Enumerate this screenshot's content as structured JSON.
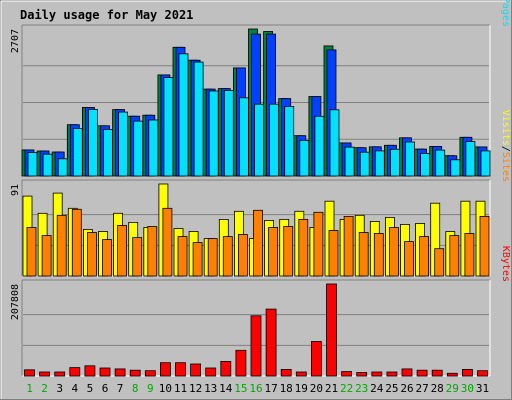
{
  "chart_data": {
    "type": "bar",
    "title": "Daily usage for May 2021",
    "days": [
      "1",
      "2",
      "3",
      "4",
      "5",
      "6",
      "7",
      "8",
      "9",
      "10",
      "11",
      "12",
      "13",
      "14",
      "15",
      "16",
      "17",
      "18",
      "19",
      "20",
      "21",
      "22",
      "23",
      "24",
      "25",
      "26",
      "27",
      "28",
      "29",
      "30",
      "31"
    ],
    "weekend_days": [
      "1",
      "2",
      "8",
      "9",
      "15",
      "16",
      "22",
      "23",
      "29",
      "30"
    ],
    "panels": [
      {
        "id": "top",
        "max_label": "2707",
        "ymax": 2707,
        "legend": [
          "Pages",
          "/",
          "Files",
          "/",
          "Hits"
        ],
        "legend_colors": [
          "#00e0ff",
          "#000000",
          "#0040ff",
          "#000000",
          "#008040"
        ],
        "series": [
          {
            "name": "Hits",
            "color": "#008040",
            "values": [
              481,
              461,
              442,
              945,
              1264,
              925,
              1222,
              1101,
              1120,
              1861,
              2370,
              2132,
              1600,
              1610,
              1991,
              2707,
              2661,
              1426,
              743,
              1464,
              2396,
              609,
              522,
              538,
              565,
              703,
              496,
              546,
              373,
              713,
              536
            ]
          },
          {
            "name": "Files",
            "color": "#0040ff",
            "values": [
              481,
              461,
              442,
              945,
              1264,
              925,
              1222,
              1101,
              1120,
              1861,
              2370,
              2132,
              1600,
              1610,
              1991,
              2613,
              2613,
              1426,
              743,
              1464,
              2322,
              609,
              522,
              538,
              565,
              703,
              496,
              546,
              373,
              713,
              536
            ]
          },
          {
            "name": "Pages",
            "color": "#00e0ff",
            "values": [
              433,
              402,
              316,
              876,
              1225,
              856,
              1176,
              1011,
              1031,
              1812,
              2250,
              2098,
              1566,
              1575,
              1440,
              1322,
              1322,
              1279,
              655,
              1099,
              1219,
              532,
              438,
              463,
              491,
              626,
              417,
              477,
              299,
              634,
              462
            ]
          }
        ]
      },
      {
        "id": "middle",
        "max_label": "91",
        "ymax": 91,
        "legend": [
          "Sites",
          "/",
          "Visits"
        ],
        "legend_colors": [
          "#ff8000",
          "#000000",
          "#ffff00"
        ],
        "series": [
          {
            "name": "Visits",
            "color": "#ffff00",
            "values": [
              79,
              62,
              82,
              67,
              46,
              44,
              62,
              53,
              48,
              91,
              47,
              44,
              37,
              56,
              64,
              37,
              55,
              56,
              64,
              48,
              74,
              56,
              60,
              54,
              58,
              51,
              52,
              72,
              44,
              74,
              74
            ]
          },
          {
            "name": "Sites",
            "color": "#ff8000",
            "values": [
              48,
              40,
              60,
              66,
              43,
              36,
              50,
              38,
              49,
              67,
              39,
              33,
              37,
              39,
              41,
              65,
              48,
              49,
              56,
              63,
              45,
              59,
              43,
              42,
              48,
              34,
              39,
              27,
              40,
              42,
              59
            ]
          }
        ]
      },
      {
        "id": "bottom",
        "max_label": "207808",
        "ymax": 207808,
        "legend": [
          "KBytes"
        ],
        "legend_colors": [
          "#ff0000"
        ],
        "series": [
          {
            "name": "KBytes",
            "color": "#ff0000",
            "values": [
              14000,
              9000,
              9000,
              19000,
              23000,
              18000,
              16000,
              13000,
              12000,
              30000,
              30000,
              27000,
              18000,
              33000,
              58000,
              136000,
              151000,
              15000,
              9000,
              78000,
              207808,
              10000,
              8000,
              9000,
              9000,
              16000,
              13000,
              13000,
              6000,
              15000,
              12000
            ]
          }
        ]
      }
    ],
    "colors": {
      "title": "#0000ff",
      "axis_label": "#000000",
      "day_label_weekday": "#000000",
      "day_label_weekend": "#00aa00",
      "plot_bg": "#c0c0c0",
      "gridline": "#808080"
    }
  }
}
